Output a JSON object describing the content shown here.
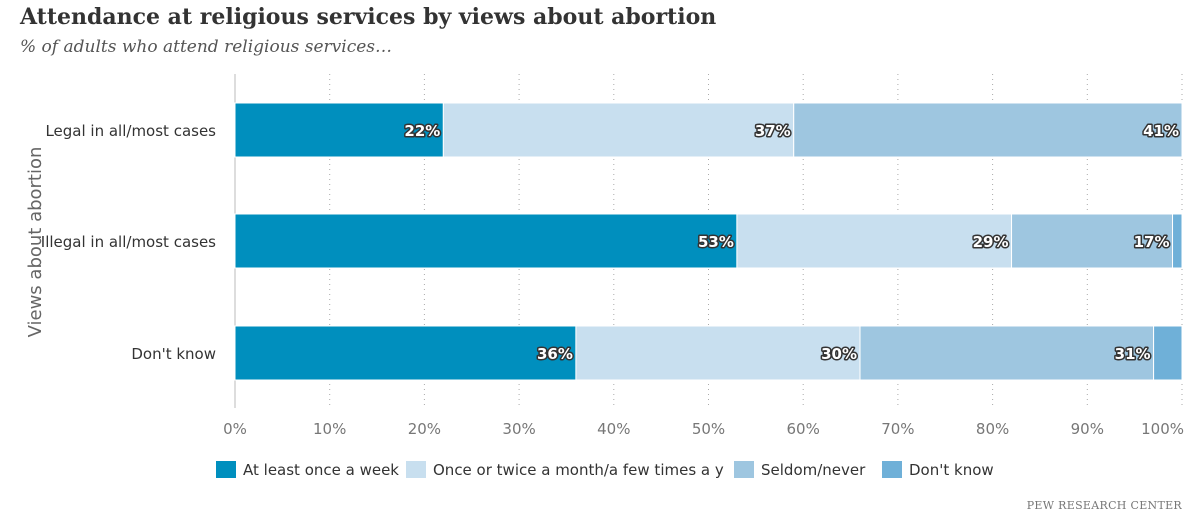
{
  "chart_data": {
    "type": "bar",
    "orientation": "horizontal",
    "stacked": true,
    "title": "Attendance at religious services by views about abortion",
    "subtitle": "% of adults who attend religious services…",
    "xlabel": "",
    "ylabel": "Views about abortion",
    "xlim": [
      0,
      100
    ],
    "x_ticks": [
      "0%",
      "10%",
      "20%",
      "30%",
      "40%",
      "50%",
      "60%",
      "70%",
      "80%",
      "90%",
      "100%"
    ],
    "grid": "vertical dotted",
    "legend_position": "bottom",
    "categories": [
      "Legal in all/most cases",
      "Illegal in all/most cases",
      "Don't know"
    ],
    "series": [
      {
        "name": "At least once a week",
        "color": "#008fbe",
        "values": [
          22,
          53,
          36
        ],
        "labels": [
          "22%",
          "53%",
          "36%"
        ]
      },
      {
        "name": "Once or twice a month/a few times a year",
        "color": "#c8dfef",
        "values": [
          37,
          29,
          30
        ],
        "labels": [
          "37%",
          "29%",
          "30%"
        ]
      },
      {
        "name": "Seldom/never",
        "color": "#9ec6e0",
        "values": [
          41,
          17,
          31
        ],
        "labels": [
          "41%",
          "17%",
          "31%"
        ]
      },
      {
        "name": "Don't know",
        "color": "#6fb0d8",
        "values": [
          0,
          1,
          3
        ],
        "labels": [
          "",
          "",
          ""
        ]
      }
    ],
    "legend_visible_text": [
      "At least once a week",
      "Once or twice a month/a few times a y",
      "Seldom/never",
      "Don't know"
    ]
  },
  "source": "PEW RESEARCH CENTER"
}
